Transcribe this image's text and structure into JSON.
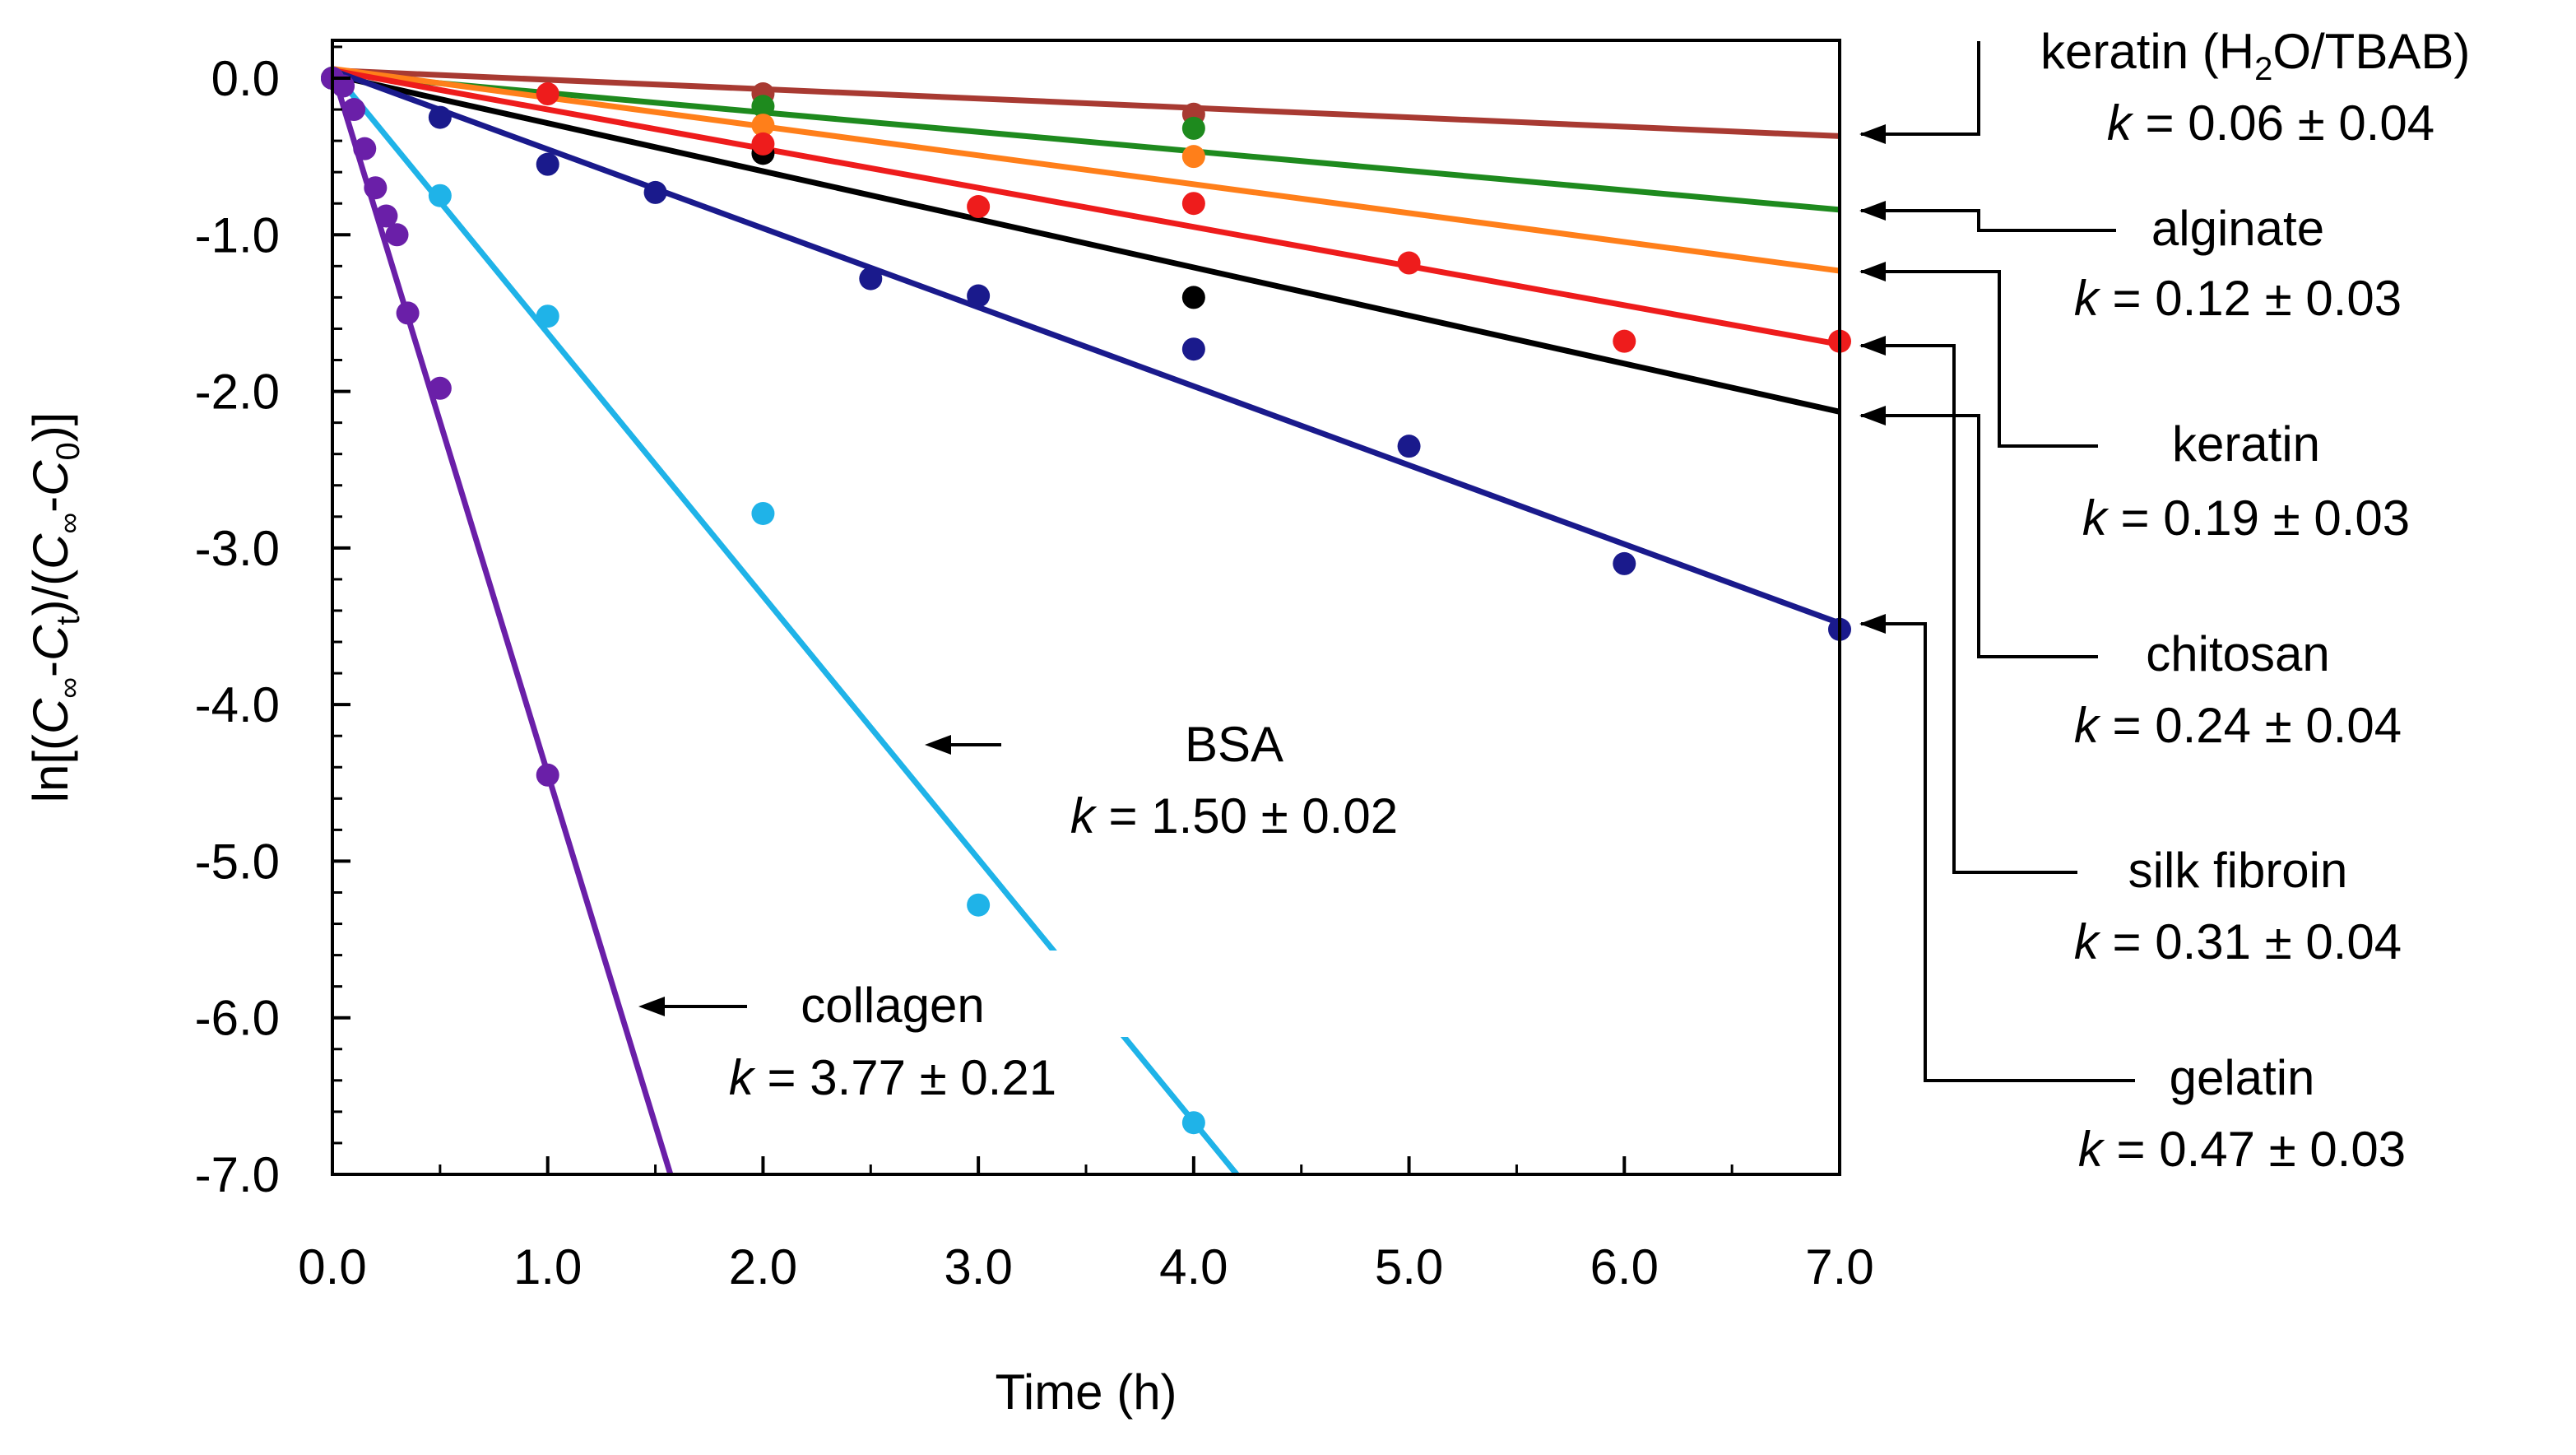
{
  "chart_data": {
    "type": "scatter",
    "title": "",
    "xlabel": "Time (h)",
    "ylabel": "ln[(C∞-Ct)/(C∞-C0)]",
    "xlim": [
      0,
      7
    ],
    "ylim": [
      -7,
      0.5
    ],
    "grid": false,
    "x_ticks": [
      "0.0",
      "1.0",
      "2.0",
      "3.0",
      "4.0",
      "5.0",
      "6.0",
      "7.0"
    ],
    "y_ticks": [
      "0.0",
      "-1.0",
      "-2.0",
      "-3.0",
      "-4.0",
      "-5.0",
      "-6.0",
      "-7.0"
    ],
    "series": [
      {
        "name": "keratin (H2O/TBAB)",
        "k_label": "k = 0.06 ± 0.04",
        "color": "#a83a32",
        "fit": [
          [
            0,
            0.05
          ],
          [
            7,
            -0.37
          ]
        ],
        "points": [
          [
            0,
            0
          ],
          [
            2,
            -0.1
          ],
          [
            4,
            -0.23
          ]
        ]
      },
      {
        "name": "alginate",
        "k_label": "k = 0.12 ± 0.03",
        "color": "#1e8a1e",
        "fit": [
          [
            0,
            0.03
          ],
          [
            7,
            -0.84
          ]
        ],
        "points": [
          [
            0,
            0
          ],
          [
            2,
            -0.18
          ],
          [
            4,
            -0.32
          ]
        ]
      },
      {
        "name": "keratin",
        "k_label": "k = 0.19 ± 0.03",
        "color": "#ff7f1a",
        "fit": [
          [
            0,
            0.06
          ],
          [
            7,
            -1.23
          ]
        ],
        "points": [
          [
            0,
            0
          ],
          [
            2,
            -0.3
          ],
          [
            4,
            -0.5
          ]
        ]
      },
      {
        "name": "chitosan",
        "k_label": "k = 0.24 ± 0.04",
        "color": "#000000",
        "fit": [
          [
            0,
            0.02
          ],
          [
            7,
            -2.13
          ]
        ],
        "points": [
          [
            0,
            0
          ],
          [
            2,
            -0.48
          ],
          [
            4,
            -1.4
          ]
        ]
      },
      {
        "name": "silk fibroin",
        "k_label": "k = 0.31 ± 0.04",
        "color": "#ee1c1c",
        "fit": [
          [
            0,
            0.05
          ],
          [
            7,
            -1.7
          ]
        ],
        "points": [
          [
            0,
            0
          ],
          [
            1,
            -0.1
          ],
          [
            2,
            -0.42
          ],
          [
            3,
            -0.82
          ],
          [
            4,
            -0.8
          ],
          [
            5,
            -1.18
          ],
          [
            6,
            -1.68
          ],
          [
            7,
            -1.68
          ]
        ]
      },
      {
        "name": "gelatin",
        "k_label": "k = 0.47 ± 0.03",
        "color": "#1a1a8c",
        "fit": [
          [
            0,
            0.05
          ],
          [
            7,
            -3.48
          ]
        ],
        "points": [
          [
            0,
            0
          ],
          [
            0.5,
            -0.25
          ],
          [
            1,
            -0.55
          ],
          [
            1.5,
            -0.73
          ],
          [
            2.5,
            -1.28
          ],
          [
            3,
            -1.39
          ],
          [
            4,
            -1.73
          ],
          [
            5,
            -2.35
          ],
          [
            6,
            -3.1
          ],
          [
            7,
            -3.52
          ]
        ]
      },
      {
        "name": "BSA",
        "k_label": "k = 1.50 ± 0.02",
        "color": "#1fb3e8",
        "fit": [
          [
            0,
            0.05
          ],
          [
            4.2,
            -7.0
          ]
        ],
        "points": [
          [
            0,
            0
          ],
          [
            0.5,
            -0.75
          ],
          [
            1,
            -1.52
          ],
          [
            2,
            -2.78
          ],
          [
            3,
            -5.28
          ],
          [
            4,
            -6.67
          ]
        ]
      },
      {
        "name": "collagen",
        "k_label": "k = 3.77 ± 0.21",
        "color": "#6a1fa8",
        "fit": [
          [
            0,
            0.05
          ],
          [
            1.57,
            -7.0
          ]
        ],
        "points": [
          [
            0,
            0
          ],
          [
            0.05,
            -0.05
          ],
          [
            0.1,
            -0.2
          ],
          [
            0.15,
            -0.45
          ],
          [
            0.2,
            -0.7
          ],
          [
            0.25,
            -0.88
          ],
          [
            0.3,
            -1.0
          ],
          [
            0.35,
            -1.5
          ],
          [
            0.5,
            -1.98
          ],
          [
            1,
            -4.45
          ]
        ]
      }
    ]
  }
}
